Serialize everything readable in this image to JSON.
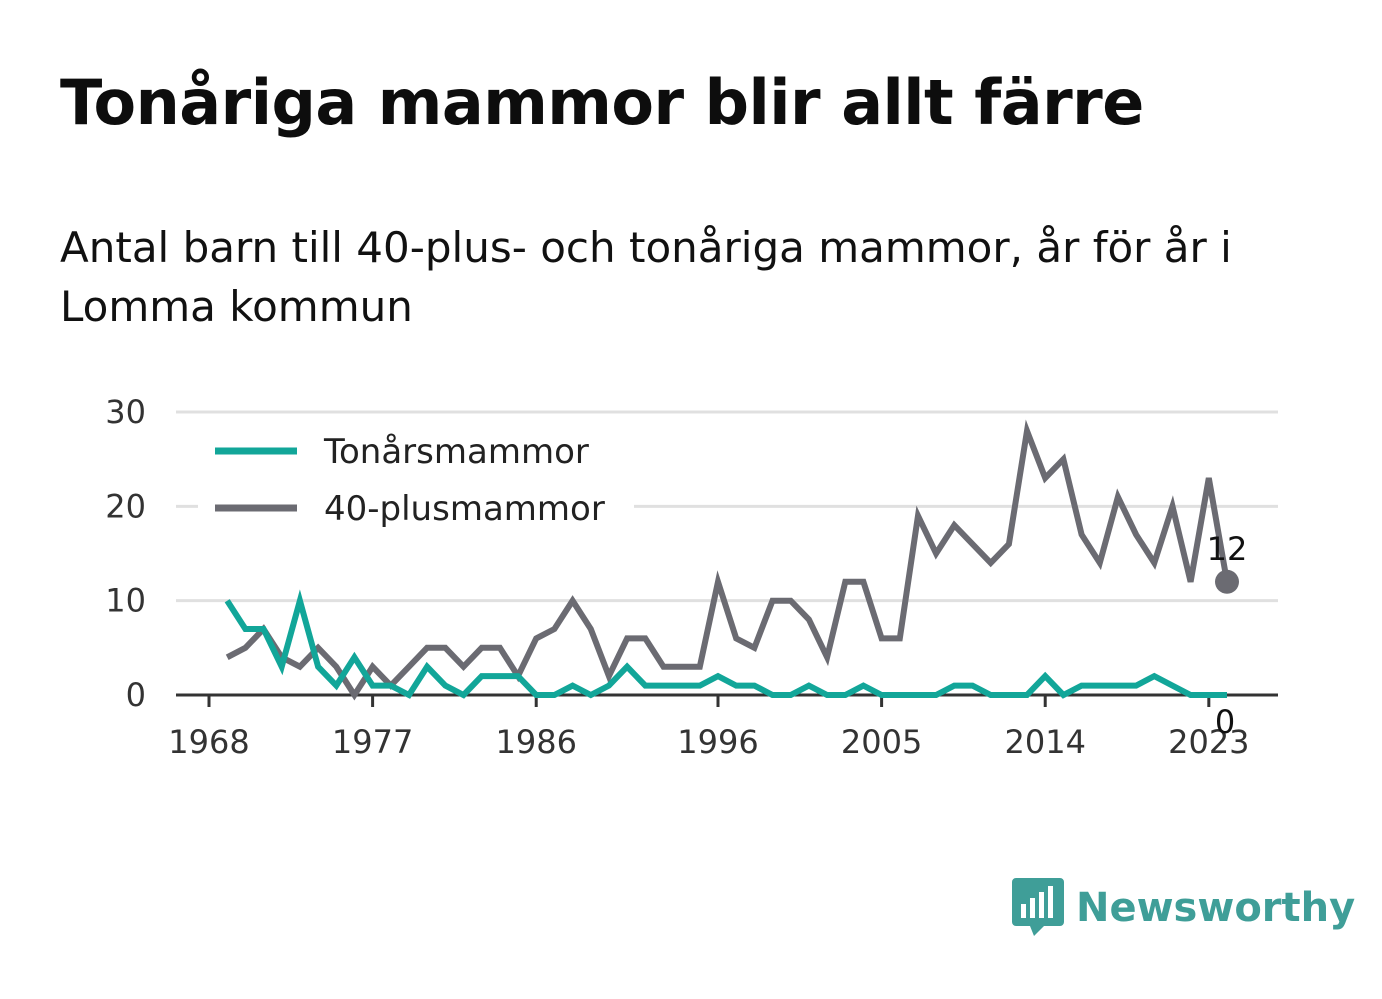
{
  "title": "Tonåriga mammor blir allt färre",
  "subtitle": "Antal barn till 40-plus- och tonåriga mammor, år för år i Lomma kommun",
  "brand": {
    "name": "Newsworthy",
    "icon": "bar-chart-bubble-icon",
    "color": "#3f9e98"
  },
  "chart_data": {
    "type": "line",
    "x": [
      1969,
      1970,
      1971,
      1972,
      1973,
      1974,
      1975,
      1976,
      1977,
      1978,
      1979,
      1980,
      1981,
      1982,
      1983,
      1984,
      1985,
      1986,
      1987,
      1988,
      1989,
      1990,
      1991,
      1992,
      1993,
      1994,
      1995,
      1996,
      1997,
      1998,
      1999,
      2000,
      2001,
      2002,
      2003,
      2004,
      2005,
      2006,
      2007,
      2008,
      2009,
      2010,
      2011,
      2012,
      2013,
      2014,
      2015,
      2016,
      2017,
      2018,
      2019,
      2020,
      2021,
      2022,
      2023,
      2024
    ],
    "series": [
      {
        "name": "Tonårsmammor",
        "color": "#12a699",
        "values": [
          10,
          7,
          7,
          3,
          10,
          3,
          1,
          4,
          1,
          1,
          0,
          3,
          1,
          0,
          2,
          2,
          2,
          0,
          0,
          1,
          0,
          1,
          3,
          1,
          1,
          1,
          1,
          2,
          1,
          1,
          0,
          0,
          1,
          0,
          0,
          1,
          0,
          0,
          0,
          0,
          1,
          1,
          0,
          0,
          0,
          2,
          0,
          1,
          1,
          1,
          1,
          2,
          1,
          0,
          0,
          0
        ]
      },
      {
        "name": "40-plusmammor",
        "color": "#6b6b72",
        "values": [
          4,
          5,
          7,
          4,
          3,
          5,
          3,
          0,
          3,
          1,
          3,
          5,
          5,
          3,
          5,
          5,
          2,
          6,
          7,
          10,
          7,
          2,
          6,
          6,
          3,
          3,
          3,
          12,
          6,
          5,
          10,
          10,
          8,
          4,
          12,
          12,
          6,
          6,
          19,
          15,
          18,
          16,
          14,
          16,
          28,
          23,
          25,
          17,
          14,
          21,
          17,
          14,
          20,
          12,
          23,
          12
        ]
      }
    ],
    "x_ticks": [
      "1968",
      "1977",
      "1986",
      "1996",
      "2005",
      "2014",
      "2023"
    ],
    "y_ticks": [
      "0",
      "10",
      "20",
      "30"
    ],
    "ylim": [
      0,
      30
    ],
    "grid": "horizontal",
    "legend_position": "top-left",
    "end_labels": [
      {
        "series": "40-plusmammor",
        "text": "12"
      },
      {
        "series": "Tonårsmammor",
        "text": "0"
      }
    ]
  }
}
